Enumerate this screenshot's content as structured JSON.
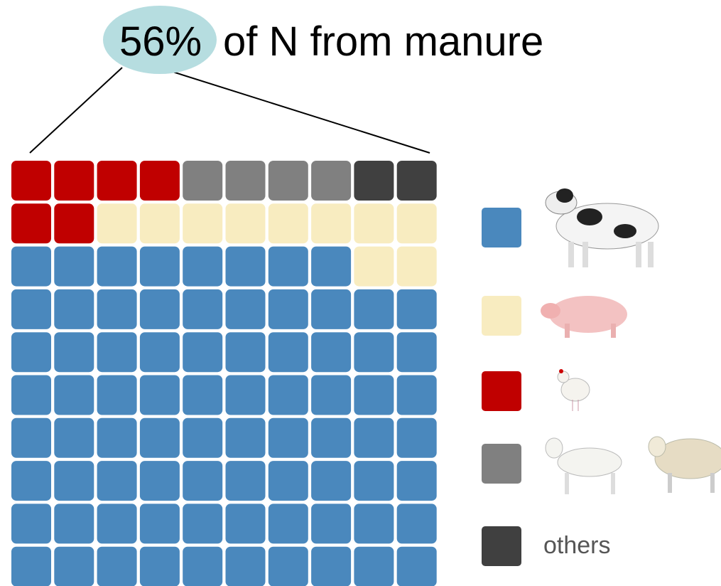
{
  "chart_data": {
    "type": "waffle",
    "title": {
      "highlight": "56%",
      "text": "of N from manure"
    },
    "series": [
      {
        "color": "#c00000",
        "values": [
          6
        ]
      },
      {
        "color": "#808080",
        "values": [
          4
        ]
      },
      {
        "name": "others",
        "color": "#404040",
        "values": [
          2
        ]
      },
      {
        "color": "#f8ecc0",
        "values": [
          10
        ]
      },
      {
        "color": "#4a88bd",
        "values": [
          78
        ]
      }
    ],
    "legend_order": [
      4,
      3,
      0,
      1,
      2
    ]
  }
}
